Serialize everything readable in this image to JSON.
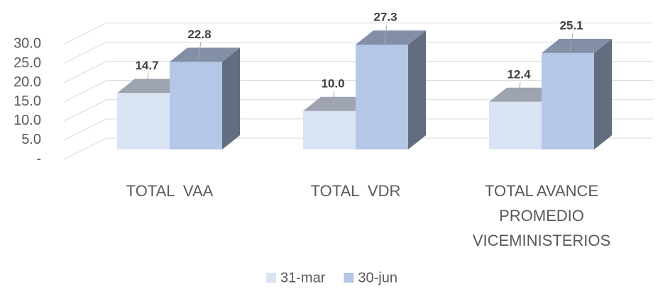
{
  "chart_data": {
    "type": "bar3d",
    "categories": [
      "TOTAL  VAA",
      "TOTAL  VDR",
      "TOTAL AVANCE PROMEDIO VICEMINISTERIOS"
    ],
    "series": [
      {
        "name": "31-mar",
        "color": "#dae3f3",
        "values": [
          14.7,
          10.0,
          12.4
        ],
        "value_labels": [
          "14.7",
          "10.0",
          "12.4"
        ]
      },
      {
        "name": "30-jun",
        "color": "#b4c7e7",
        "values": [
          22.8,
          27.3,
          25.1
        ]
      }
    ],
    "ylim": [
      0,
      30
    ],
    "yticks": [
      {
        "value": 0,
        "label": "-"
      },
      {
        "value": 5,
        "label": "5.0"
      },
      {
        "value": 10,
        "label": "10.0"
      },
      {
        "value": 15,
        "label": "15.0"
      },
      {
        "value": 20,
        "label": "20.0"
      },
      {
        "value": 25,
        "label": "25.0"
      },
      {
        "value": 30,
        "label": "30.0"
      }
    ],
    "grid": true,
    "legend": "bottom"
  }
}
